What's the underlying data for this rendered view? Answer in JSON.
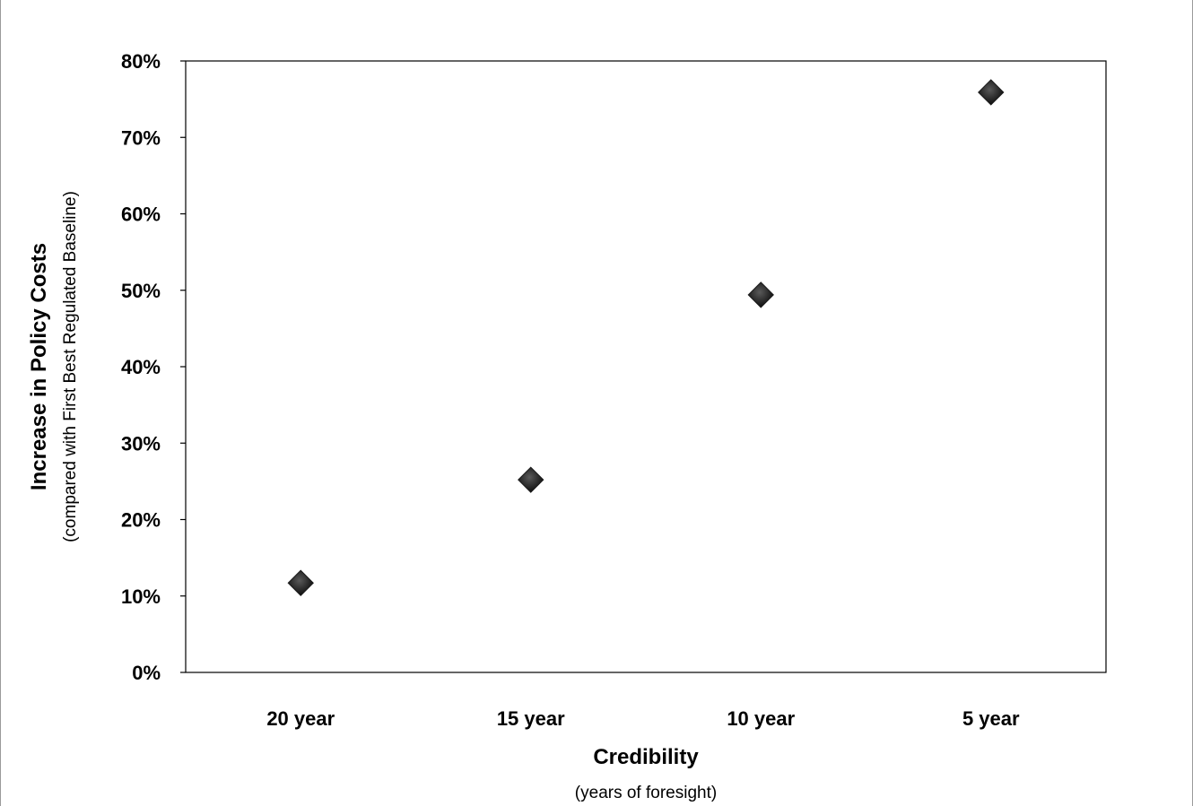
{
  "chart_data": {
    "type": "scatter",
    "categories": [
      "20 year",
      "15 year",
      "10 year",
      "5 year"
    ],
    "values": [
      0.117,
      0.252,
      0.494,
      0.759
    ],
    "y_tick_values": [
      0,
      0.1,
      0.2,
      0.3,
      0.4,
      0.5,
      0.6,
      0.7,
      0.8
    ],
    "y_tick_labels": [
      "0%",
      "10%",
      "20%",
      "30%",
      "40%",
      "50%",
      "60%",
      "70%",
      "80%"
    ],
    "ylim": [
      0,
      0.8
    ],
    "xlabel": "Credibility",
    "xlabel_sub": "(years of foresight)",
    "ylabel": "Increase in Policy Costs",
    "ylabel_sub": "(compared with First Best Regulated Baseline)",
    "grid": false,
    "legend": "none",
    "marker": "diamond",
    "colors": {
      "marker": "#1a1a1a",
      "axis": "#000000",
      "text": "#000000",
      "frame": "#9a9a9a"
    }
  }
}
